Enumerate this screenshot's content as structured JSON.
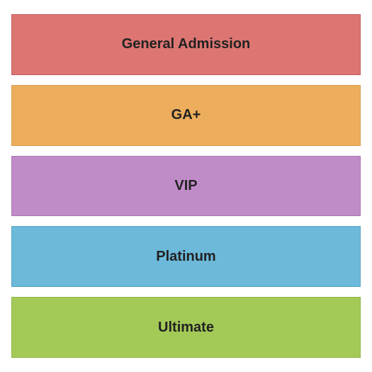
{
  "diagram": {
    "type": "infographic",
    "background_color": "#ffffff",
    "gap": 14,
    "label_fontsize": 20,
    "label_fontweight": "bold",
    "label_color": "#222222",
    "tiers": [
      {
        "label": "General Admission",
        "fill_color": "#dd7672",
        "border_color": "#c75c5c"
      },
      {
        "label": "GA+",
        "fill_color": "#ecae5c",
        "border_color": "#d89a4a"
      },
      {
        "label": "VIP",
        "fill_color": "#c08cc8",
        "border_color": "#a877b1"
      },
      {
        "label": "Platinum",
        "fill_color": "#6cb9da",
        "border_color": "#5aa5c5"
      },
      {
        "label": "Ultimate",
        "fill_color": "#a3ca57",
        "border_color": "#8fb548"
      }
    ]
  }
}
